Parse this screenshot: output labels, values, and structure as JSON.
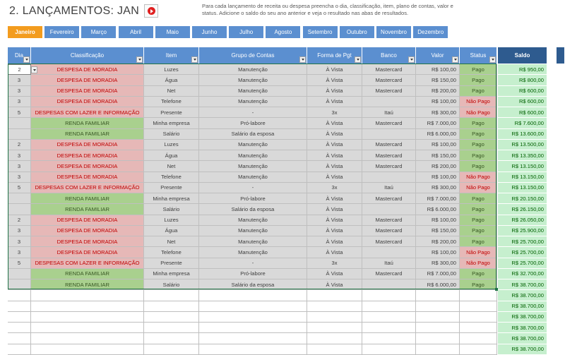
{
  "title": "2. LANÇAMENTOS: JAN",
  "play_icon": "play-circle-icon",
  "instructions": "Para cada lançamento de receita ou despesa preencha o dia, classificação, item, plano de contas, valor e status. Adicione o saldo do seu ano anterior e veja o resultado nas abas de resultados.",
  "colors": {
    "tab": "#5b8fd0",
    "tab_active": "#f39c1e",
    "header": "#5b8fd0",
    "header_saldo": "#2e5b8f",
    "despesa": "#e6b8b7",
    "renda": "#a9d08e",
    "saldo": "#c6efce"
  },
  "months": [
    "Janeiro",
    "Fevereiro",
    "Março",
    "Abril",
    "Maio",
    "Junho",
    "Julho",
    "Agosto",
    "Setembro",
    "Outubro",
    "Novembro",
    "Dezembro"
  ],
  "active_month": "Janeiro",
  "headers": {
    "dia": "Dia",
    "classificacao": "Classificação",
    "item": "Item",
    "grupo": "Grupo de Contas",
    "forma": "Forma de Pgt",
    "banco": "Banco",
    "valor": "Valor",
    "status": "Status",
    "saldo": "Saldo"
  },
  "rows": [
    {
      "dia": "2",
      "classificacao": "DESPESA DE MORADIA",
      "item": "Luzes",
      "grupo": "Manutenção",
      "forma": "À Vista",
      "banco": "Mastercard",
      "valor": "R$ 100,00",
      "status": "Pago",
      "saldo": "R$ 950,00"
    },
    {
      "dia": "3",
      "classificacao": "DESPESA DE MORADIA",
      "item": "Água",
      "grupo": "Manutenção",
      "forma": "À Vista",
      "banco": "Mastercard",
      "valor": "R$ 150,00",
      "status": "Pago",
      "saldo": "R$ 800,00"
    },
    {
      "dia": "3",
      "classificacao": "DESPESA DE MORADIA",
      "item": "Net",
      "grupo": "Manutenção",
      "forma": "À Vista",
      "banco": "Mastercard",
      "valor": "R$ 200,00",
      "status": "Pago",
      "saldo": "R$ 600,00"
    },
    {
      "dia": "3",
      "classificacao": "DESPESA DE MORADIA",
      "item": "Telefone",
      "grupo": "Manutenção",
      "forma": "À Vista",
      "banco": "",
      "valor": "R$ 100,00",
      "status": "Não Pago",
      "saldo": "R$ 600,00"
    },
    {
      "dia": "5",
      "classificacao": "DESPESAS COM LAZER E INFORMAÇÃO",
      "item": "Presente",
      "grupo": "-",
      "forma": "3x",
      "banco": "Itaú",
      "valor": "R$ 300,00",
      "status": "Não Pago",
      "saldo": "R$ 600,00"
    },
    {
      "dia": "",
      "classificacao": "RENDA FAMILIAR",
      "item": "Minha empresa",
      "grupo": "Pró-labore",
      "forma": "À Vista",
      "banco": "Mastercard",
      "valor": "R$ 7.000,00",
      "status": "Pago",
      "saldo": "R$ 7.600,00"
    },
    {
      "dia": "",
      "classificacao": "RENDA FAMILIAR",
      "item": "Salário",
      "grupo": "Salário da esposa",
      "forma": "À Vista",
      "banco": "",
      "valor": "R$ 6.000,00",
      "status": "Pago",
      "saldo": "R$ 13.600,00"
    },
    {
      "dia": "2",
      "classificacao": "DESPESA DE MORADIA",
      "item": "Luzes",
      "grupo": "Manutenção",
      "forma": "À Vista",
      "banco": "Mastercard",
      "valor": "R$ 100,00",
      "status": "Pago",
      "saldo": "R$ 13.500,00"
    },
    {
      "dia": "3",
      "classificacao": "DESPESA DE MORADIA",
      "item": "Água",
      "grupo": "Manutenção",
      "forma": "À Vista",
      "banco": "Mastercard",
      "valor": "R$ 150,00",
      "status": "Pago",
      "saldo": "R$ 13.350,00"
    },
    {
      "dia": "3",
      "classificacao": "DESPESA DE MORADIA",
      "item": "Net",
      "grupo": "Manutenção",
      "forma": "À Vista",
      "banco": "Mastercard",
      "valor": "R$ 200,00",
      "status": "Pago",
      "saldo": "R$ 13.150,00"
    },
    {
      "dia": "3",
      "classificacao": "DESPESA DE MORADIA",
      "item": "Telefone",
      "grupo": "Manutenção",
      "forma": "À Vista",
      "banco": "",
      "valor": "R$ 100,00",
      "status": "Não Pago",
      "saldo": "R$ 13.150,00"
    },
    {
      "dia": "5",
      "classificacao": "DESPESAS COM LAZER E INFORMAÇÃO",
      "item": "Presente",
      "grupo": "-",
      "forma": "3x",
      "banco": "Itaú",
      "valor": "R$ 300,00",
      "status": "Não Pago",
      "saldo": "R$ 13.150,00"
    },
    {
      "dia": "",
      "classificacao": "RENDA FAMILIAR",
      "item": "Minha empresa",
      "grupo": "Pró-labore",
      "forma": "À Vista",
      "banco": "Mastercard",
      "valor": "R$ 7.000,00",
      "status": "Pago",
      "saldo": "R$ 20.150,00"
    },
    {
      "dia": "",
      "classificacao": "RENDA FAMILIAR",
      "item": "Salário",
      "grupo": "Salário da esposa",
      "forma": "À Vista",
      "banco": "",
      "valor": "R$ 6.000,00",
      "status": "Pago",
      "saldo": "R$ 26.150,00"
    },
    {
      "dia": "2",
      "classificacao": "DESPESA DE MORADIA",
      "item": "Luzes",
      "grupo": "Manutenção",
      "forma": "À Vista",
      "banco": "Mastercard",
      "valor": "R$ 100,00",
      "status": "Pago",
      "saldo": "R$ 26.050,00"
    },
    {
      "dia": "3",
      "classificacao": "DESPESA DE MORADIA",
      "item": "Água",
      "grupo": "Manutenção",
      "forma": "À Vista",
      "banco": "Mastercard",
      "valor": "R$ 150,00",
      "status": "Pago",
      "saldo": "R$ 25.900,00"
    },
    {
      "dia": "3",
      "classificacao": "DESPESA DE MORADIA",
      "item": "Net",
      "grupo": "Manutenção",
      "forma": "À Vista",
      "banco": "Mastercard",
      "valor": "R$ 200,00",
      "status": "Pago",
      "saldo": "R$ 25.700,00"
    },
    {
      "dia": "3",
      "classificacao": "DESPESA DE MORADIA",
      "item": "Telefone",
      "grupo": "Manutenção",
      "forma": "À Vista",
      "banco": "",
      "valor": "R$ 100,00",
      "status": "Não Pago",
      "saldo": "R$ 25.700,00"
    },
    {
      "dia": "5",
      "classificacao": "DESPESAS COM LAZER E INFORMAÇÃO",
      "item": "Presente",
      "grupo": "-",
      "forma": "3x",
      "banco": "Itaú",
      "valor": "R$ 300,00",
      "status": "Não Pago",
      "saldo": "R$ 25.700,00"
    },
    {
      "dia": "",
      "classificacao": "RENDA FAMILIAR",
      "item": "Minha empresa",
      "grupo": "Pró-labore",
      "forma": "À Vista",
      "banco": "Mastercard",
      "valor": "R$ 7.000,00",
      "status": "Pago",
      "saldo": "R$ 32.700,00"
    },
    {
      "dia": "",
      "classificacao": "RENDA FAMILIAR",
      "item": "Salário",
      "grupo": "Salário da esposa",
      "forma": "À Vista",
      "banco": "",
      "valor": "R$ 6.000,00",
      "status": "Pago",
      "saldo": "R$ 38.700,00"
    }
  ],
  "empty_saldo": [
    "R$ 38.700,00",
    "R$ 38.700,00",
    "R$ 38.700,00",
    "R$ 38.700,00",
    "R$ 38.700,00",
    "R$ 38.700,00"
  ]
}
